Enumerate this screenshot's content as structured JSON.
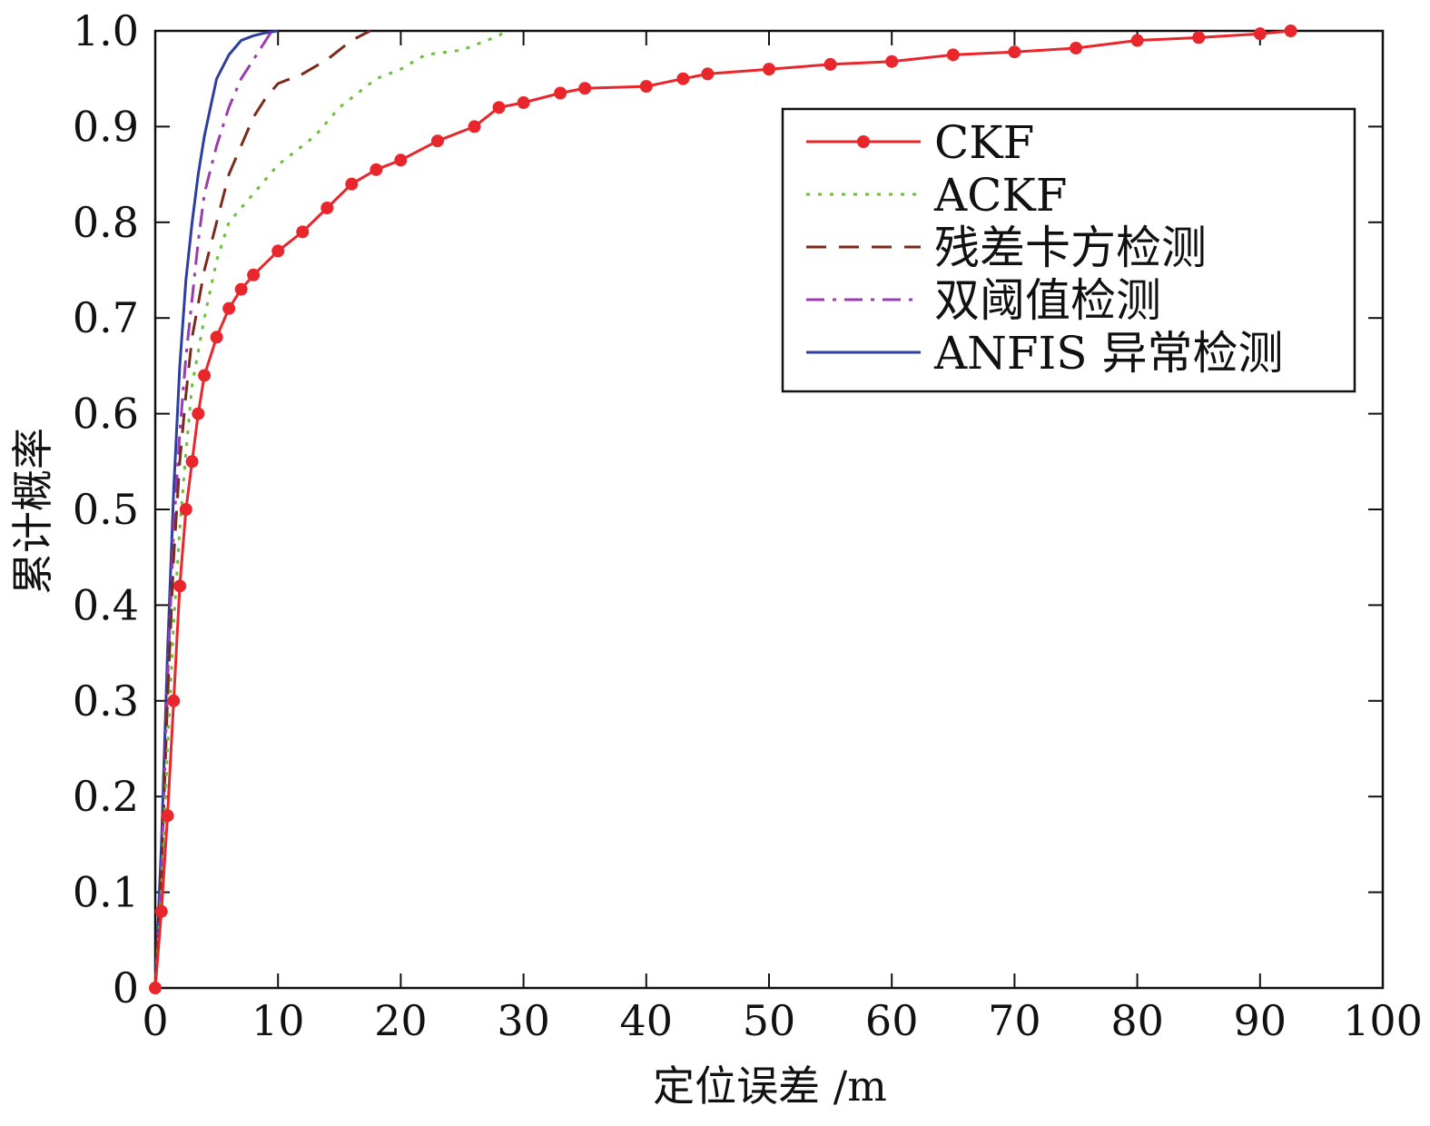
{
  "chart_data": {
    "type": "line",
    "xlabel": "定位误差 /m",
    "ylabel": "累计概率",
    "xlim": [
      0,
      100
    ],
    "ylim": [
      0,
      1.0
    ],
    "x_ticks": [
      "0",
      "10",
      "20",
      "30",
      "40",
      "50",
      "60",
      "70",
      "80",
      "90",
      "100"
    ],
    "y_ticks": [
      "0",
      "0.1",
      "0.2",
      "0.3",
      "0.4",
      "0.5",
      "0.6",
      "0.7",
      "0.8",
      "0.9",
      "1.0"
    ],
    "grid": false,
    "legend_position": "top-right",
    "series": [
      {
        "name": "CKF",
        "color": "#e8262b",
        "style": "solid-marker",
        "x": [
          0,
          0.5,
          1,
          1.5,
          2,
          2.5,
          3,
          3.5,
          4,
          5,
          6,
          7,
          8,
          10,
          12,
          14,
          16,
          18,
          20,
          23,
          26,
          28,
          30,
          33,
          35,
          40,
          43,
          45,
          50,
          55,
          60,
          65,
          70,
          75,
          80,
          85,
          90,
          92.5
        ],
        "y": [
          0,
          0.08,
          0.18,
          0.3,
          0.42,
          0.5,
          0.55,
          0.6,
          0.64,
          0.68,
          0.71,
          0.73,
          0.745,
          0.77,
          0.79,
          0.815,
          0.84,
          0.855,
          0.865,
          0.885,
          0.9,
          0.92,
          0.925,
          0.935,
          0.94,
          0.942,
          0.95,
          0.955,
          0.96,
          0.965,
          0.968,
          0.975,
          0.978,
          0.982,
          0.99,
          0.993,
          0.997,
          1.0
        ]
      },
      {
        "name": "ACKF",
        "color": "#6cbf3d",
        "style": "dotted",
        "x": [
          0,
          0.5,
          1,
          1.5,
          2,
          2.5,
          3,
          4,
          5,
          6,
          8,
          10,
          13,
          15,
          18,
          20,
          22,
          25,
          28,
          28.5
        ],
        "y": [
          0,
          0.1,
          0.25,
          0.38,
          0.48,
          0.56,
          0.63,
          0.7,
          0.76,
          0.8,
          0.83,
          0.86,
          0.89,
          0.92,
          0.95,
          0.96,
          0.975,
          0.98,
          0.995,
          1.0
        ]
      },
      {
        "name": "残差卡方检测",
        "color": "#7b2a1c",
        "style": "dashed",
        "x": [
          0,
          0.5,
          1,
          1.5,
          2,
          2.5,
          3,
          4,
          5,
          6,
          7,
          8,
          9,
          10,
          12,
          14,
          16,
          17.5
        ],
        "y": [
          0,
          0.12,
          0.3,
          0.45,
          0.55,
          0.62,
          0.68,
          0.75,
          0.8,
          0.85,
          0.88,
          0.91,
          0.93,
          0.945,
          0.955,
          0.97,
          0.99,
          1.0
        ]
      },
      {
        "name": "双阈值检测",
        "color": "#9b3bb0",
        "style": "dash-dot",
        "x": [
          0,
          0.5,
          1,
          1.5,
          2,
          2.5,
          3,
          3.5,
          4,
          5,
          6,
          7,
          8,
          9,
          9.5
        ],
        "y": [
          0,
          0.12,
          0.32,
          0.48,
          0.58,
          0.66,
          0.72,
          0.78,
          0.83,
          0.88,
          0.92,
          0.95,
          0.97,
          0.99,
          1.0
        ]
      },
      {
        "name": "ANFIS 异常检测",
        "color": "#2d3e9e",
        "style": "solid",
        "x": [
          0,
          0.5,
          1,
          1.5,
          2,
          2.5,
          3,
          3.5,
          4,
          4.5,
          5,
          6,
          7,
          8,
          9,
          10
        ],
        "y": [
          0,
          0.15,
          0.35,
          0.52,
          0.65,
          0.74,
          0.8,
          0.85,
          0.89,
          0.92,
          0.95,
          0.975,
          0.99,
          0.995,
          0.998,
          1.0
        ]
      }
    ]
  }
}
